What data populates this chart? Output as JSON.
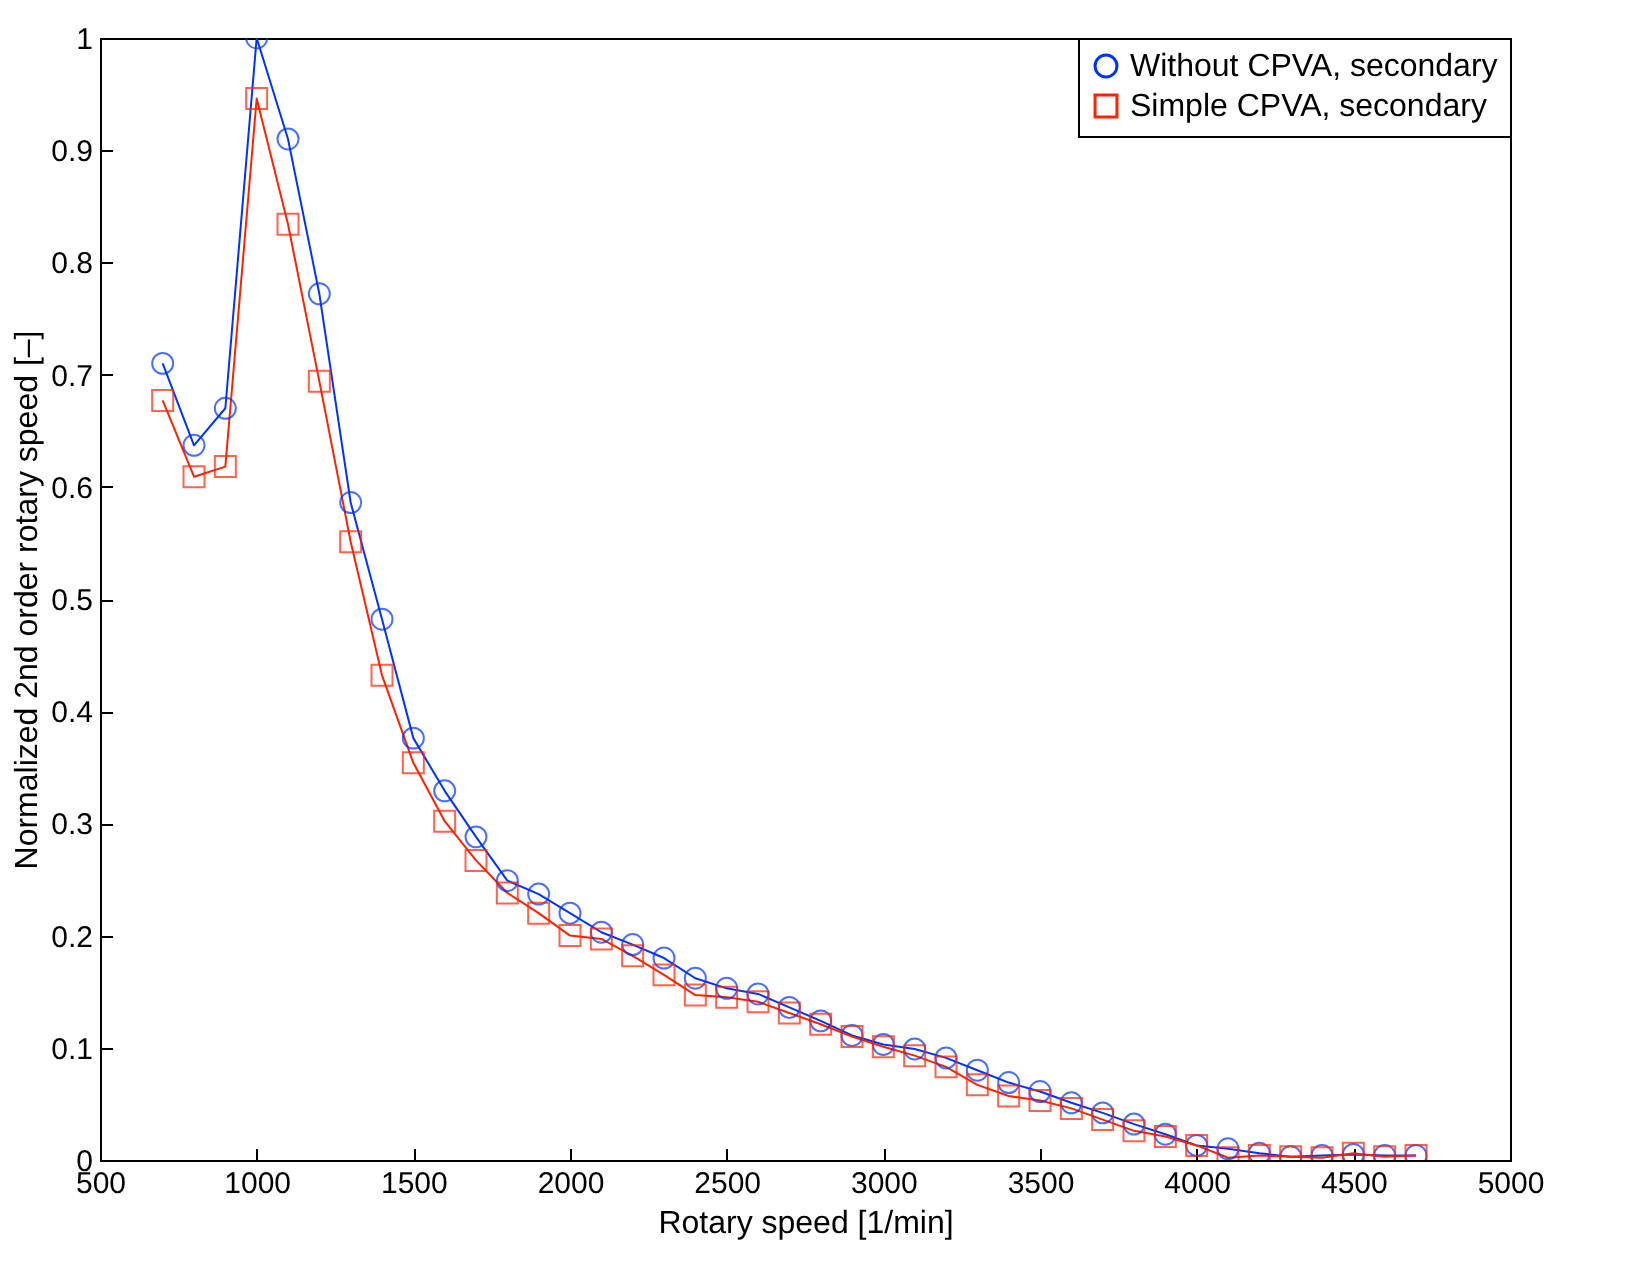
{
  "chart_data": {
    "type": "line",
    "xlabel": "Rotary speed [1/min]",
    "ylabel": "Normalized 2nd order rotary speed [–]",
    "x": [
      700,
      800,
      900,
      1000,
      1100,
      1200,
      1300,
      1400,
      1500,
      1600,
      1700,
      1800,
      1900,
      2000,
      2100,
      2200,
      2300,
      2400,
      2500,
      2600,
      2700,
      2800,
      2900,
      3000,
      3100,
      3200,
      3300,
      3400,
      3500,
      3600,
      3700,
      3800,
      3900,
      4000,
      4100,
      4200,
      4300,
      4400,
      4500,
      4600,
      4700
    ],
    "series": [
      {
        "name": "Without CPVA, secondary",
        "color": "#0033ff",
        "marker": "circle",
        "values": [
          0.71,
          0.637,
          0.67,
          1.0,
          0.91,
          0.772,
          0.586,
          0.482,
          0.376,
          0.329,
          0.288,
          0.249,
          0.237,
          0.22,
          0.203,
          0.192,
          0.18,
          0.162,
          0.153,
          0.148,
          0.136,
          0.124,
          0.111,
          0.103,
          0.099,
          0.091,
          0.08,
          0.069,
          0.061,
          0.051,
          0.042,
          0.032,
          0.023,
          0.013,
          0.01,
          0.006,
          0.003,
          0.004,
          0.005,
          0.004,
          0.004
        ]
      },
      {
        "name": "Simple CPVA, secondary",
        "color": "#ff2200",
        "marker": "square",
        "values": [
          0.677,
          0.609,
          0.618,
          0.946,
          0.834,
          0.694,
          0.551,
          0.432,
          0.354,
          0.302,
          0.267,
          0.238,
          0.22,
          0.2,
          0.197,
          0.182,
          0.165,
          0.147,
          0.145,
          0.141,
          0.131,
          0.121,
          0.11,
          0.101,
          0.093,
          0.083,
          0.067,
          0.057,
          0.053,
          0.046,
          0.036,
          0.026,
          0.021,
          0.013,
          0.002,
          0.004,
          0.003,
          0.002,
          0.006,
          0.003,
          0.004
        ]
      }
    ],
    "xlim": [
      500,
      5000
    ],
    "xticks": [
      500,
      1000,
      1500,
      2000,
      2500,
      3000,
      3500,
      4000,
      4500,
      5000
    ],
    "ylim": [
      0,
      1
    ],
    "yticks": [
      0,
      0.1,
      0.2,
      0.3,
      0.4,
      0.5,
      0.6,
      0.7,
      0.8,
      0.9,
      1
    ],
    "grid": false,
    "legend": "top right",
    "line_style": "solid"
  }
}
